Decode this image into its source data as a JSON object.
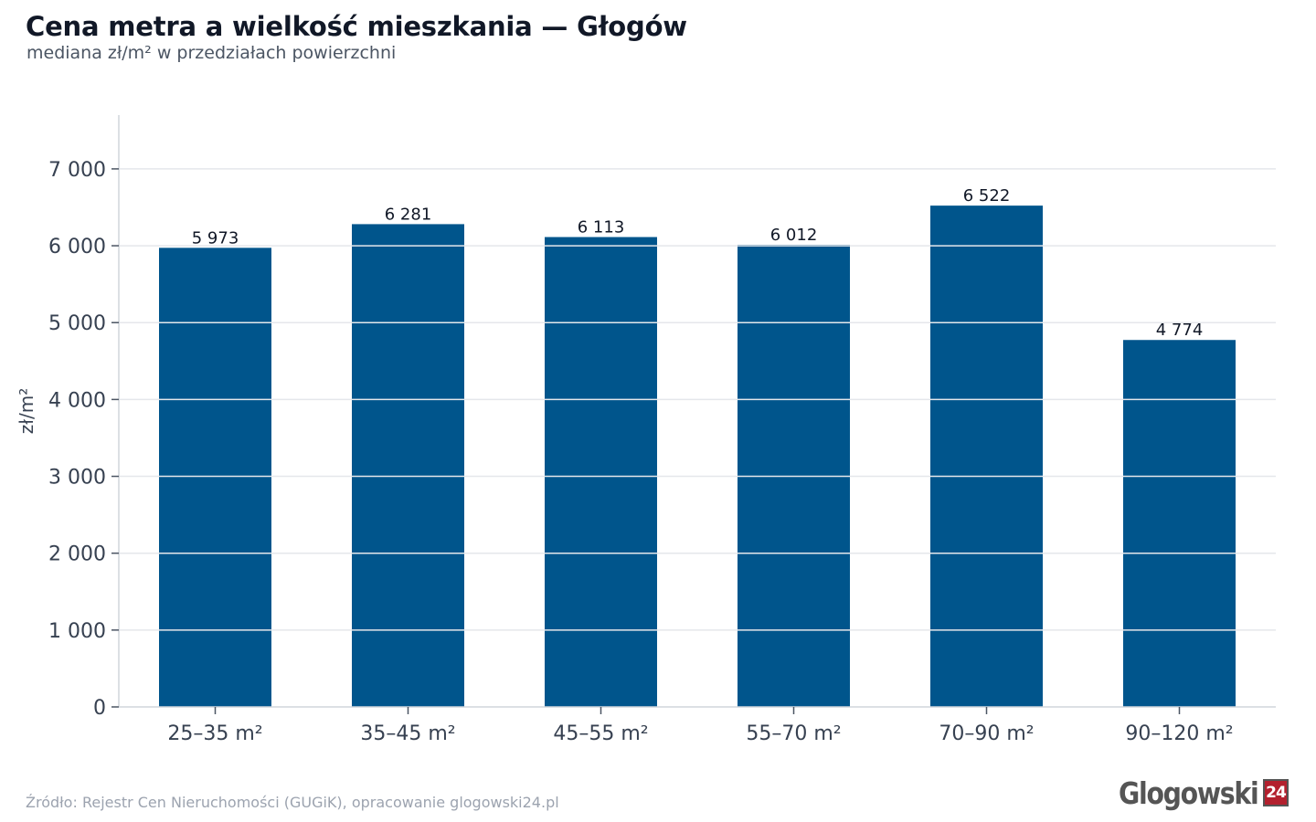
{
  "header": {
    "title": "Cena metra a wielkość mieszkania — Głogów",
    "subtitle": "mediana zł/m² w przedziałach powierzchni"
  },
  "footer": {
    "source": "Źródło: Rejestr Cen Nieruchomości (GUGiK), opracowanie glogowski24.pl"
  },
  "logo": {
    "text": "Glogowski",
    "badge": "24"
  },
  "colors": {
    "bar": "#00558c",
    "grid": "#e5e7eb",
    "axis": "#d1d5db",
    "logo_red": "#b3202e"
  },
  "chart_data": {
    "type": "bar",
    "title": "Cena metra a wielkość mieszkania — Głogów",
    "subtitle": "mediana zł/m² w przedziałach powierzchni",
    "xlabel": "",
    "ylabel": "zł/m²",
    "categories": [
      "25–35 m²",
      "35–45 m²",
      "45–55 m²",
      "55–70 m²",
      "70–90 m²",
      "90–120 m²"
    ],
    "values": [
      5973,
      6281,
      6113,
      6012,
      6522,
      4774
    ],
    "value_labels": [
      "5 973",
      "6 281",
      "6 113",
      "6 012",
      "6 522",
      "4 774"
    ],
    "ylim": [
      0,
      7700
    ],
    "yticks": [
      0,
      1000,
      2000,
      3000,
      4000,
      5000,
      6000,
      7000
    ],
    "ytick_labels": [
      "0",
      "1 000",
      "2 000",
      "3 000",
      "4 000",
      "5 000",
      "6 000",
      "7 000"
    ],
    "grid": true,
    "legend": "none"
  }
}
